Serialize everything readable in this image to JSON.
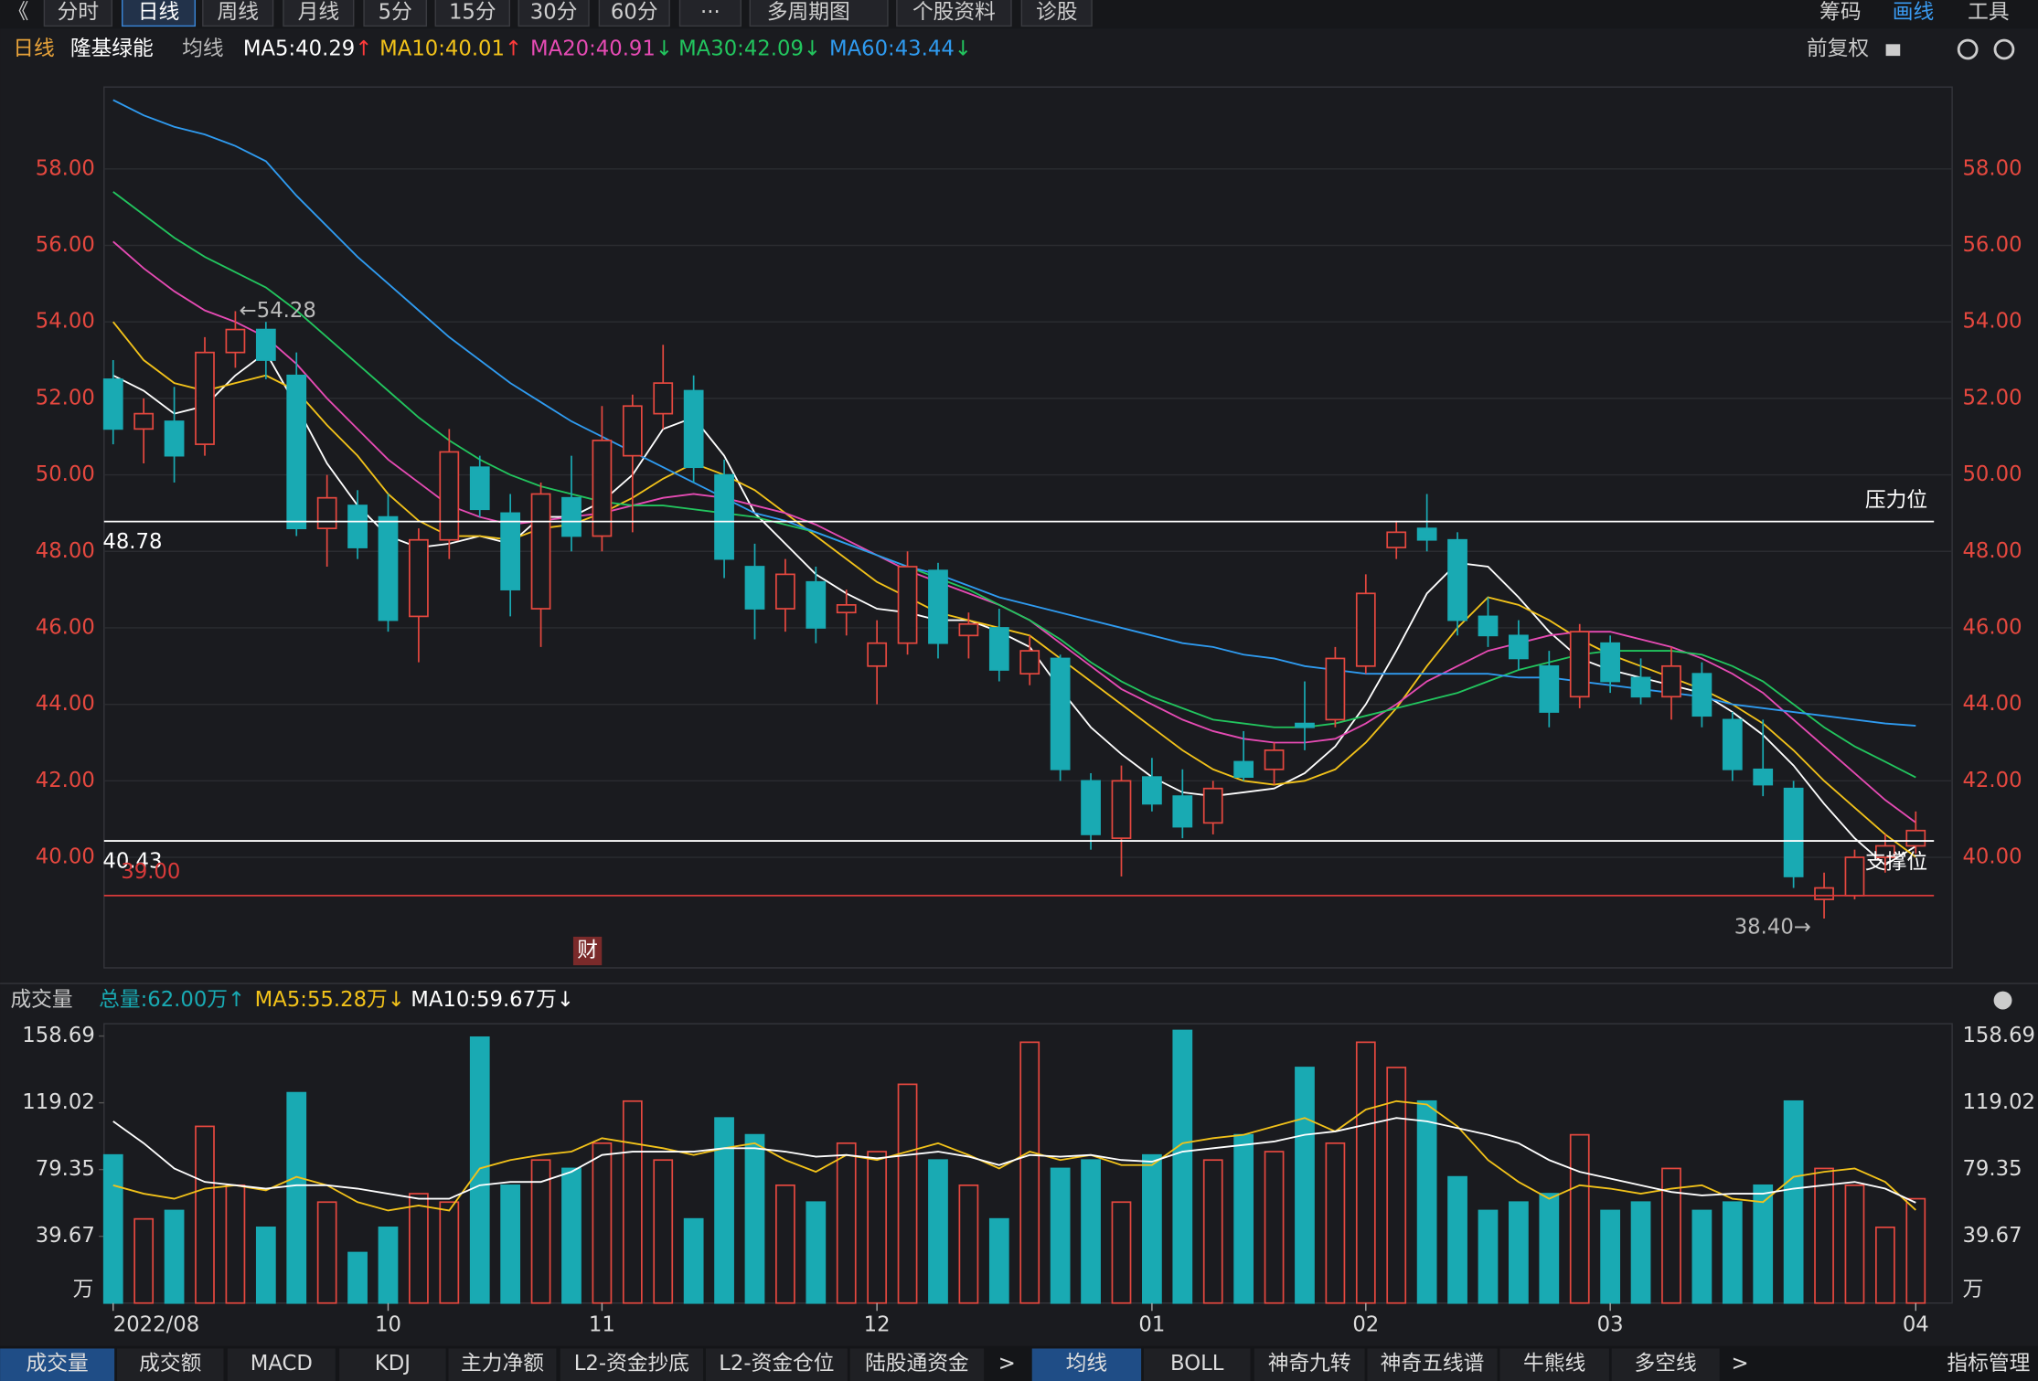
{
  "toolbar": {
    "back": "《",
    "buttons": [
      "分时",
      "日线",
      "周线",
      "月线",
      "5分",
      "15分",
      "30分",
      "60分",
      "···",
      "多周期图",
      "个股资料",
      "诊股"
    ],
    "active": 1,
    "right": [
      "筹码",
      "画线",
      "工具"
    ],
    "right_active": 1
  },
  "header": {
    "period": "日线",
    "stock": "隆基绿能",
    "ma_title": "均线",
    "adjust": "前复权"
  },
  "chart_data": [
    {
      "type": "candlestick",
      "up_color": "#e5483f",
      "down_color": "#19aab3",
      "ylim": [
        37.11,
        60.14
      ],
      "yticks": [
        {
          "value": 40,
          "label": "40.00"
        },
        {
          "value": 42,
          "label": "42.00"
        },
        {
          "value": 44,
          "label": "44.00"
        },
        {
          "value": 46,
          "label": "46.00"
        },
        {
          "value": 48,
          "label": "48.00"
        },
        {
          "value": 50,
          "label": "50.00"
        },
        {
          "value": 52,
          "label": "52.00"
        },
        {
          "value": 54,
          "label": "54.00"
        },
        {
          "value": 56,
          "label": "56.00"
        },
        {
          "value": 58,
          "label": "58.00"
        }
      ],
      "grid": true,
      "open": [
        52.5,
        51.2,
        51.4,
        50.8,
        53.2,
        53.8,
        52.6,
        48.6,
        49.2,
        48.9,
        46.3,
        48.3,
        50.2,
        49.0,
        46.5,
        49.4,
        48.4,
        50.5,
        51.6,
        52.2,
        50.0,
        47.6,
        46.5,
        47.2,
        46.4,
        45.0,
        45.6,
        47.5,
        45.8,
        46.0,
        44.8,
        45.2,
        42.0,
        40.5,
        42.1,
        41.6,
        40.9,
        42.5,
        42.3,
        43.5,
        43.6,
        45.0,
        48.1,
        48.6,
        48.3,
        46.3,
        45.8,
        45.0,
        44.2,
        45.6,
        44.7,
        44.2,
        44.8,
        43.6,
        42.3,
        41.8,
        38.9,
        39.0,
        40.0,
        40.3
      ],
      "high": [
        53.0,
        52.0,
        52.3,
        53.6,
        54.28,
        54.0,
        53.2,
        50.0,
        49.6,
        49.5,
        48.6,
        51.2,
        50.5,
        49.5,
        49.8,
        50.5,
        51.8,
        52.1,
        53.4,
        52.6,
        50.4,
        48.2,
        47.8,
        47.6,
        47.0,
        46.2,
        48.0,
        47.7,
        46.4,
        46.5,
        45.8,
        45.3,
        42.2,
        42.4,
        42.6,
        42.3,
        42.0,
        43.3,
        43.0,
        44.6,
        45.5,
        47.4,
        48.8,
        49.5,
        48.5,
        46.8,
        46.2,
        45.4,
        46.1,
        45.8,
        45.2,
        45.5,
        45.1,
        43.8,
        43.6,
        42.0,
        39.6,
        40.2,
        40.6,
        41.2
      ],
      "low": [
        50.8,
        50.3,
        49.8,
        50.5,
        52.8,
        52.5,
        48.4,
        47.6,
        47.8,
        45.9,
        45.1,
        47.8,
        48.9,
        46.3,
        45.5,
        48.0,
        48.0,
        48.5,
        51.2,
        49.8,
        47.3,
        45.7,
        45.9,
        45.6,
        45.8,
        44.0,
        45.3,
        45.2,
        45.2,
        44.6,
        44.5,
        42.0,
        40.2,
        39.5,
        41.2,
        40.5,
        40.6,
        42.0,
        41.9,
        42.8,
        43.4,
        44.8,
        47.8,
        48.0,
        45.8,
        45.5,
        44.9,
        43.4,
        43.9,
        44.3,
        44.0,
        43.6,
        43.4,
        42.0,
        41.6,
        39.2,
        38.4,
        38.9,
        39.6,
        40.1
      ],
      "close": [
        51.2,
        51.6,
        50.5,
        53.2,
        53.8,
        53.0,
        48.6,
        49.4,
        48.1,
        46.2,
        48.3,
        50.6,
        49.1,
        47.0,
        49.5,
        48.4,
        50.9,
        51.8,
        52.4,
        50.2,
        47.8,
        46.5,
        47.4,
        46.0,
        46.6,
        45.6,
        47.6,
        45.6,
        46.1,
        44.9,
        45.4,
        42.3,
        40.6,
        42.0,
        41.4,
        40.8,
        41.8,
        42.1,
        42.8,
        43.4,
        45.2,
        46.9,
        48.5,
        48.3,
        46.2,
        45.8,
        45.2,
        43.8,
        45.9,
        44.6,
        44.2,
        45.0,
        43.7,
        42.3,
        41.9,
        39.5,
        39.2,
        40.0,
        40.3,
        40.7
      ],
      "series": [
        {
          "name": "MA5",
          "label": "MA5:40.29",
          "arrow": "↑",
          "arrow_color": "#ff3b3b",
          "color": "#ffffff",
          "values": [
            52.6,
            52.2,
            51.6,
            51.8,
            52.6,
            53.2,
            51.8,
            50.3,
            49.2,
            48.4,
            48.1,
            48.2,
            48.4,
            48.2,
            48.9,
            48.9,
            49.3,
            50.0,
            51.2,
            51.5,
            50.5,
            49.0,
            48.2,
            47.4,
            46.9,
            46.5,
            46.4,
            46.2,
            46.2,
            45.9,
            45.5,
            44.4,
            43.4,
            42.7,
            42.1,
            41.7,
            41.6,
            41.7,
            41.8,
            42.2,
            42.9,
            44.0,
            45.4,
            46.9,
            47.7,
            47.6,
            46.8,
            45.9,
            45.2,
            44.9,
            44.7,
            44.5,
            44.3,
            43.8,
            43.2,
            42.4,
            41.4,
            40.5,
            39.8,
            40.29
          ]
        },
        {
          "name": "MA10",
          "label": "MA10:40.01",
          "arrow": "↑",
          "arrow_color": "#ff3b3b",
          "color": "#f2c21a",
          "values": [
            54.0,
            53.0,
            52.4,
            52.2,
            52.4,
            52.6,
            52.2,
            51.3,
            50.5,
            49.5,
            48.8,
            48.4,
            48.4,
            48.3,
            48.6,
            48.7,
            49.0,
            49.4,
            49.9,
            50.3,
            50.0,
            49.6,
            49.0,
            48.4,
            47.8,
            47.2,
            46.8,
            46.4,
            46.2,
            46.0,
            45.8,
            45.2,
            44.6,
            44.0,
            43.4,
            42.8,
            42.3,
            42.0,
            41.9,
            42.0,
            42.3,
            43.0,
            43.9,
            45.0,
            46.0,
            46.8,
            46.6,
            46.2,
            45.7,
            45.3,
            45.0,
            44.7,
            44.4,
            44.0,
            43.5,
            42.8,
            42.0,
            41.3,
            40.6,
            40.01
          ]
        },
        {
          "name": "MA20",
          "label": "MA20:40.91",
          "arrow": "↓",
          "arrow_color": "#22c55e",
          "color": "#e64bb4",
          "values": [
            56.1,
            55.4,
            54.8,
            54.3,
            54.0,
            53.6,
            52.9,
            52.0,
            51.2,
            50.4,
            49.8,
            49.2,
            48.9,
            48.7,
            48.8,
            48.9,
            49.0,
            49.2,
            49.4,
            49.5,
            49.4,
            49.2,
            49.0,
            48.7,
            48.3,
            47.9,
            47.5,
            47.2,
            46.9,
            46.6,
            46.2,
            45.6,
            45.0,
            44.4,
            44.0,
            43.6,
            43.3,
            43.1,
            43.0,
            43.0,
            43.1,
            43.5,
            44.0,
            44.6,
            45.0,
            45.4,
            45.6,
            45.8,
            45.9,
            45.9,
            45.7,
            45.5,
            45.2,
            44.8,
            44.3,
            43.6,
            42.9,
            42.2,
            41.5,
            40.91
          ]
        },
        {
          "name": "MA30",
          "label": "MA30:42.09",
          "arrow": "↓",
          "arrow_color": "#22c55e",
          "color": "#22c55e",
          "values": [
            57.4,
            56.8,
            56.2,
            55.7,
            55.3,
            54.9,
            54.3,
            53.6,
            52.9,
            52.2,
            51.5,
            50.9,
            50.4,
            50.0,
            49.7,
            49.5,
            49.3,
            49.2,
            49.2,
            49.1,
            49.0,
            48.9,
            48.7,
            48.5,
            48.2,
            47.9,
            47.6,
            47.3,
            47.0,
            46.6,
            46.2,
            45.7,
            45.1,
            44.6,
            44.2,
            43.9,
            43.6,
            43.5,
            43.4,
            43.4,
            43.5,
            43.7,
            43.9,
            44.1,
            44.3,
            44.6,
            44.9,
            45.1,
            45.3,
            45.4,
            45.4,
            45.4,
            45.3,
            45.0,
            44.6,
            44.0,
            43.4,
            42.9,
            42.5,
            42.09
          ]
        },
        {
          "name": "MA60",
          "label": "MA60:43.44",
          "arrow": "↓",
          "arrow_color": "#22c55e",
          "color": "#2f9bf0",
          "values": [
            59.8,
            59.4,
            59.1,
            58.9,
            58.6,
            58.2,
            57.3,
            56.5,
            55.7,
            55.0,
            54.3,
            53.6,
            53.0,
            52.4,
            51.9,
            51.4,
            51.0,
            50.6,
            50.2,
            49.8,
            49.4,
            49.0,
            48.8,
            48.5,
            48.2,
            47.9,
            47.6,
            47.4,
            47.1,
            46.8,
            46.6,
            46.4,
            46.2,
            46.0,
            45.8,
            45.6,
            45.5,
            45.3,
            45.2,
            45.0,
            44.9,
            44.8,
            44.8,
            44.8,
            44.8,
            44.8,
            44.7,
            44.7,
            44.6,
            44.5,
            44.4,
            44.3,
            44.2,
            44.0,
            43.9,
            43.8,
            43.7,
            43.6,
            43.5,
            43.44
          ]
        }
      ],
      "hlines": [
        {
          "value": 48.78,
          "name": "压力位",
          "color": "#ffffff"
        },
        {
          "value": 40.43,
          "name": "支撑位",
          "color": "#ffffff"
        },
        {
          "value": 39,
          "value_label": "39.00",
          "color": "#d93a3a"
        }
      ],
      "max_label": "←54.28",
      "min_label": "38.40→",
      "event_marker": "财"
    },
    {
      "type": "bar",
      "title": "成交量",
      "total_label": "总量:62.00万↑",
      "unit": "万",
      "categories": [
        "2022/08",
        null,
        null,
        null,
        null,
        null,
        null,
        null,
        null,
        "10",
        null,
        null,
        null,
        null,
        null,
        null,
        "11",
        null,
        null,
        null,
        null,
        null,
        null,
        null,
        null,
        "12",
        null,
        null,
        null,
        null,
        null,
        null,
        null,
        null,
        "01",
        null,
        null,
        null,
        null,
        null,
        null,
        "02",
        null,
        null,
        null,
        null,
        null,
        null,
        null,
        "03",
        null,
        null,
        null,
        null,
        null,
        null,
        null,
        null,
        null,
        "04"
      ],
      "values": [
        88,
        50,
        55,
        105,
        70,
        45,
        125,
        60,
        30,
        45,
        65,
        60,
        158,
        70,
        85,
        80,
        95,
        120,
        85,
        50,
        110,
        100,
        70,
        60,
        95,
        90,
        130,
        85,
        70,
        50,
        155,
        80,
        85,
        60,
        88,
        162,
        85,
        100,
        90,
        140,
        95,
        155,
        140,
        120,
        75,
        55,
        60,
        65,
        100,
        55,
        60,
        80,
        55,
        60,
        70,
        120,
        80,
        70,
        45,
        62.0
      ],
      "ylim": [
        0,
        166
      ],
      "yticks": [
        39.67,
        79.35,
        119.02,
        158.69
      ],
      "grid": false,
      "series": [
        {
          "name": "MA5",
          "label": "MA5:55.28万↓",
          "color": "#f2c21a",
          "values": [
            70,
            65,
            62,
            68,
            70,
            67,
            75,
            70,
            60,
            55,
            58,
            55,
            80,
            85,
            88,
            90,
            98,
            95,
            92,
            88,
            92,
            95,
            85,
            78,
            88,
            85,
            90,
            95,
            88,
            80,
            90,
            85,
            88,
            82,
            82,
            95,
            98,
            100,
            105,
            110,
            102,
            115,
            120,
            118,
            105,
            85,
            72,
            62,
            70,
            68,
            65,
            68,
            70,
            62,
            60,
            75,
            78,
            80,
            72,
            55.28
          ]
        },
        {
          "name": "MA10",
          "label": "MA10:59.67万↓",
          "color": "#ffffff",
          "values": [
            108,
            95,
            80,
            72,
            70,
            68,
            70,
            70,
            68,
            65,
            62,
            62,
            70,
            72,
            72,
            78,
            88,
            90,
            90,
            90,
            92,
            92,
            90,
            87,
            88,
            86,
            88,
            90,
            87,
            82,
            88,
            87,
            88,
            85,
            84,
            90,
            92,
            94,
            96,
            100,
            102,
            106,
            110,
            108,
            104,
            100,
            95,
            85,
            78,
            74,
            70,
            66,
            64,
            65,
            65,
            68,
            70,
            72,
            68,
            59.67
          ]
        }
      ]
    }
  ],
  "indicator_tabs": [
    "成交量",
    "成交额",
    "MACD",
    "KDJ",
    "主力净额",
    "L2-资金抄底",
    "L2-资金仓位",
    "陆股通资金"
  ],
  "indicator_active": 0,
  "indicator_more": ">",
  "overlay_tabs": [
    "均线",
    "BOLL",
    "神奇九转",
    "神奇五线谱",
    "牛熊线",
    "多空线"
  ],
  "overlay_active": 0,
  "overlay_more": ">",
  "manage": "指标管理"
}
